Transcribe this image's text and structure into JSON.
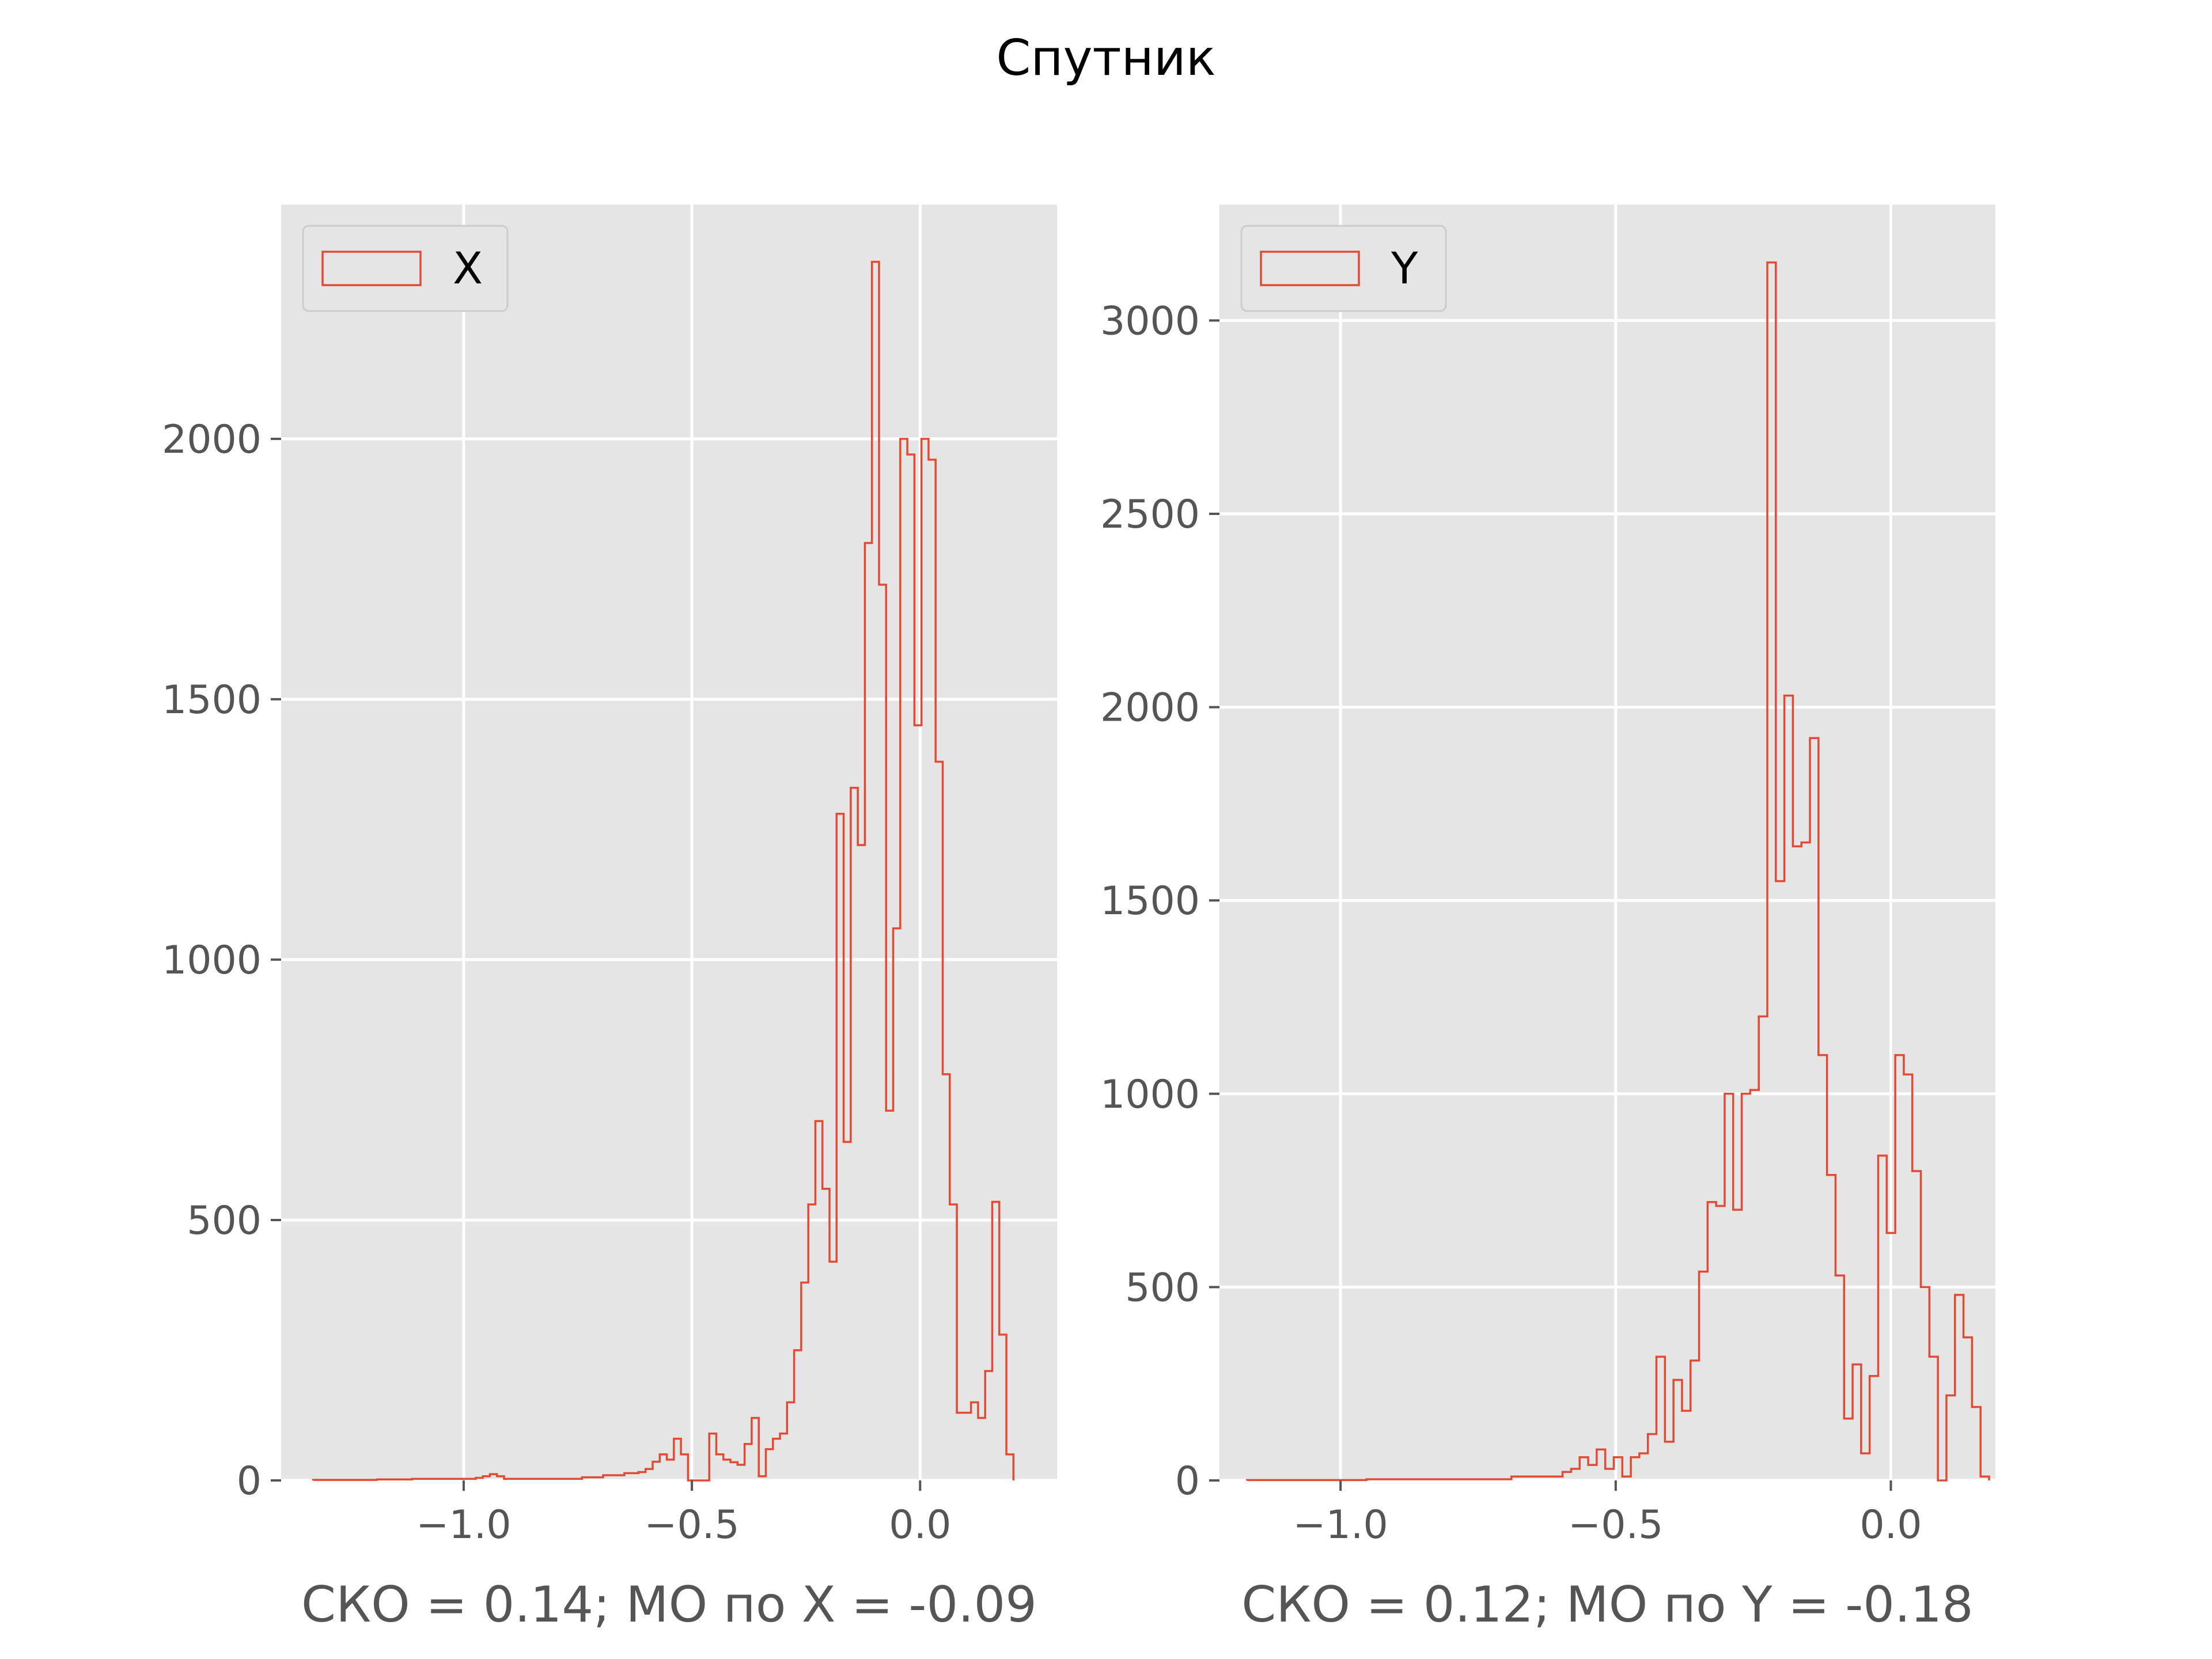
{
  "figure": {
    "title": "Спутник",
    "colors": {
      "background": "#E5E5E5",
      "grid": "#FFFFFF",
      "series": "#E24A33",
      "text": "#555555"
    }
  },
  "chart_data": [
    {
      "type": "bar",
      "style": "step-histogram",
      "legend": "X",
      "legend_position": "top-left",
      "xlabel": "СКО = 0.14; МО по X = -0.09",
      "ylabel": "",
      "grid": true,
      "xlim": [
        -1.4,
        0.3
      ],
      "ylim": [
        0,
        2450
      ],
      "xticks": [
        -1.0,
        -0.5,
        0.0
      ],
      "xtick_labels": [
        "−1.0",
        "−0.5",
        "0.0"
      ],
      "yticks": [
        0,
        500,
        1000,
        1500,
        2000
      ],
      "ytick_labels": [
        "0",
        "500",
        "1000",
        "1500",
        "2000"
      ],
      "bin_start": -1.33,
      "bin_width": 0.0155,
      "counts": [
        1,
        1,
        1,
        1,
        1,
        1,
        1,
        1,
        1,
        2,
        2,
        2,
        2,
        2,
        3,
        3,
        3,
        3,
        3,
        3,
        3,
        3,
        3,
        5,
        8,
        12,
        8,
        3,
        3,
        3,
        3,
        3,
        3,
        3,
        3,
        3,
        3,
        3,
        6,
        6,
        6,
        10,
        10,
        10,
        14,
        14,
        16,
        22,
        36,
        50,
        40,
        80,
        50,
        0,
        0,
        0,
        90,
        50,
        40,
        35,
        30,
        70,
        120,
        8,
        60,
        80,
        90,
        150,
        250,
        380,
        530,
        690,
        560,
        420,
        1280,
        650,
        1330,
        1220,
        1800,
        2340,
        1720,
        710,
        1060,
        2000,
        1970,
        1450,
        2000,
        1960,
        1380,
        780,
        530,
        130,
        130,
        150,
        120,
        210,
        535,
        280,
        50
      ]
    },
    {
      "type": "bar",
      "style": "step-histogram",
      "legend": "Y",
      "legend_position": "top-left",
      "xlabel": "СКО = 0.12; МО по Y = -0.18",
      "ylabel": "",
      "grid": true,
      "xlim": [
        -1.22,
        0.19
      ],
      "ylim": [
        0,
        3300
      ],
      "xticks": [
        -1.0,
        -0.5,
        0.0
      ],
      "xtick_labels": [
        "−1.0",
        "−0.5",
        "0.0"
      ],
      "yticks": [
        0,
        500,
        1000,
        1500,
        2000,
        2500,
        3000
      ],
      "ytick_labels": [
        "0",
        "500",
        "1000",
        "1500",
        "2000",
        "2500",
        "3000"
      ],
      "bin_start": -1.17,
      "bin_width": 0.0155,
      "counts": [
        1,
        1,
        1,
        1,
        1,
        1,
        1,
        1,
        1,
        1,
        1,
        1,
        1,
        1,
        3,
        3,
        3,
        3,
        3,
        3,
        3,
        3,
        3,
        3,
        3,
        3,
        3,
        3,
        3,
        3,
        3,
        10,
        10,
        10,
        10,
        10,
        10,
        22,
        30,
        60,
        40,
        80,
        30,
        60,
        10,
        60,
        70,
        120,
        320,
        100,
        260,
        180,
        310,
        540,
        720,
        710,
        1000,
        700,
        1000,
        1010,
        1200,
        3150,
        1550,
        2030,
        1640,
        1650,
        1920,
        1100,
        790,
        530,
        160,
        300,
        70,
        270,
        840,
        640,
        1100,
        1050,
        800,
        500,
        320,
        0,
        220,
        480,
        370,
        190,
        10
      ]
    }
  ]
}
